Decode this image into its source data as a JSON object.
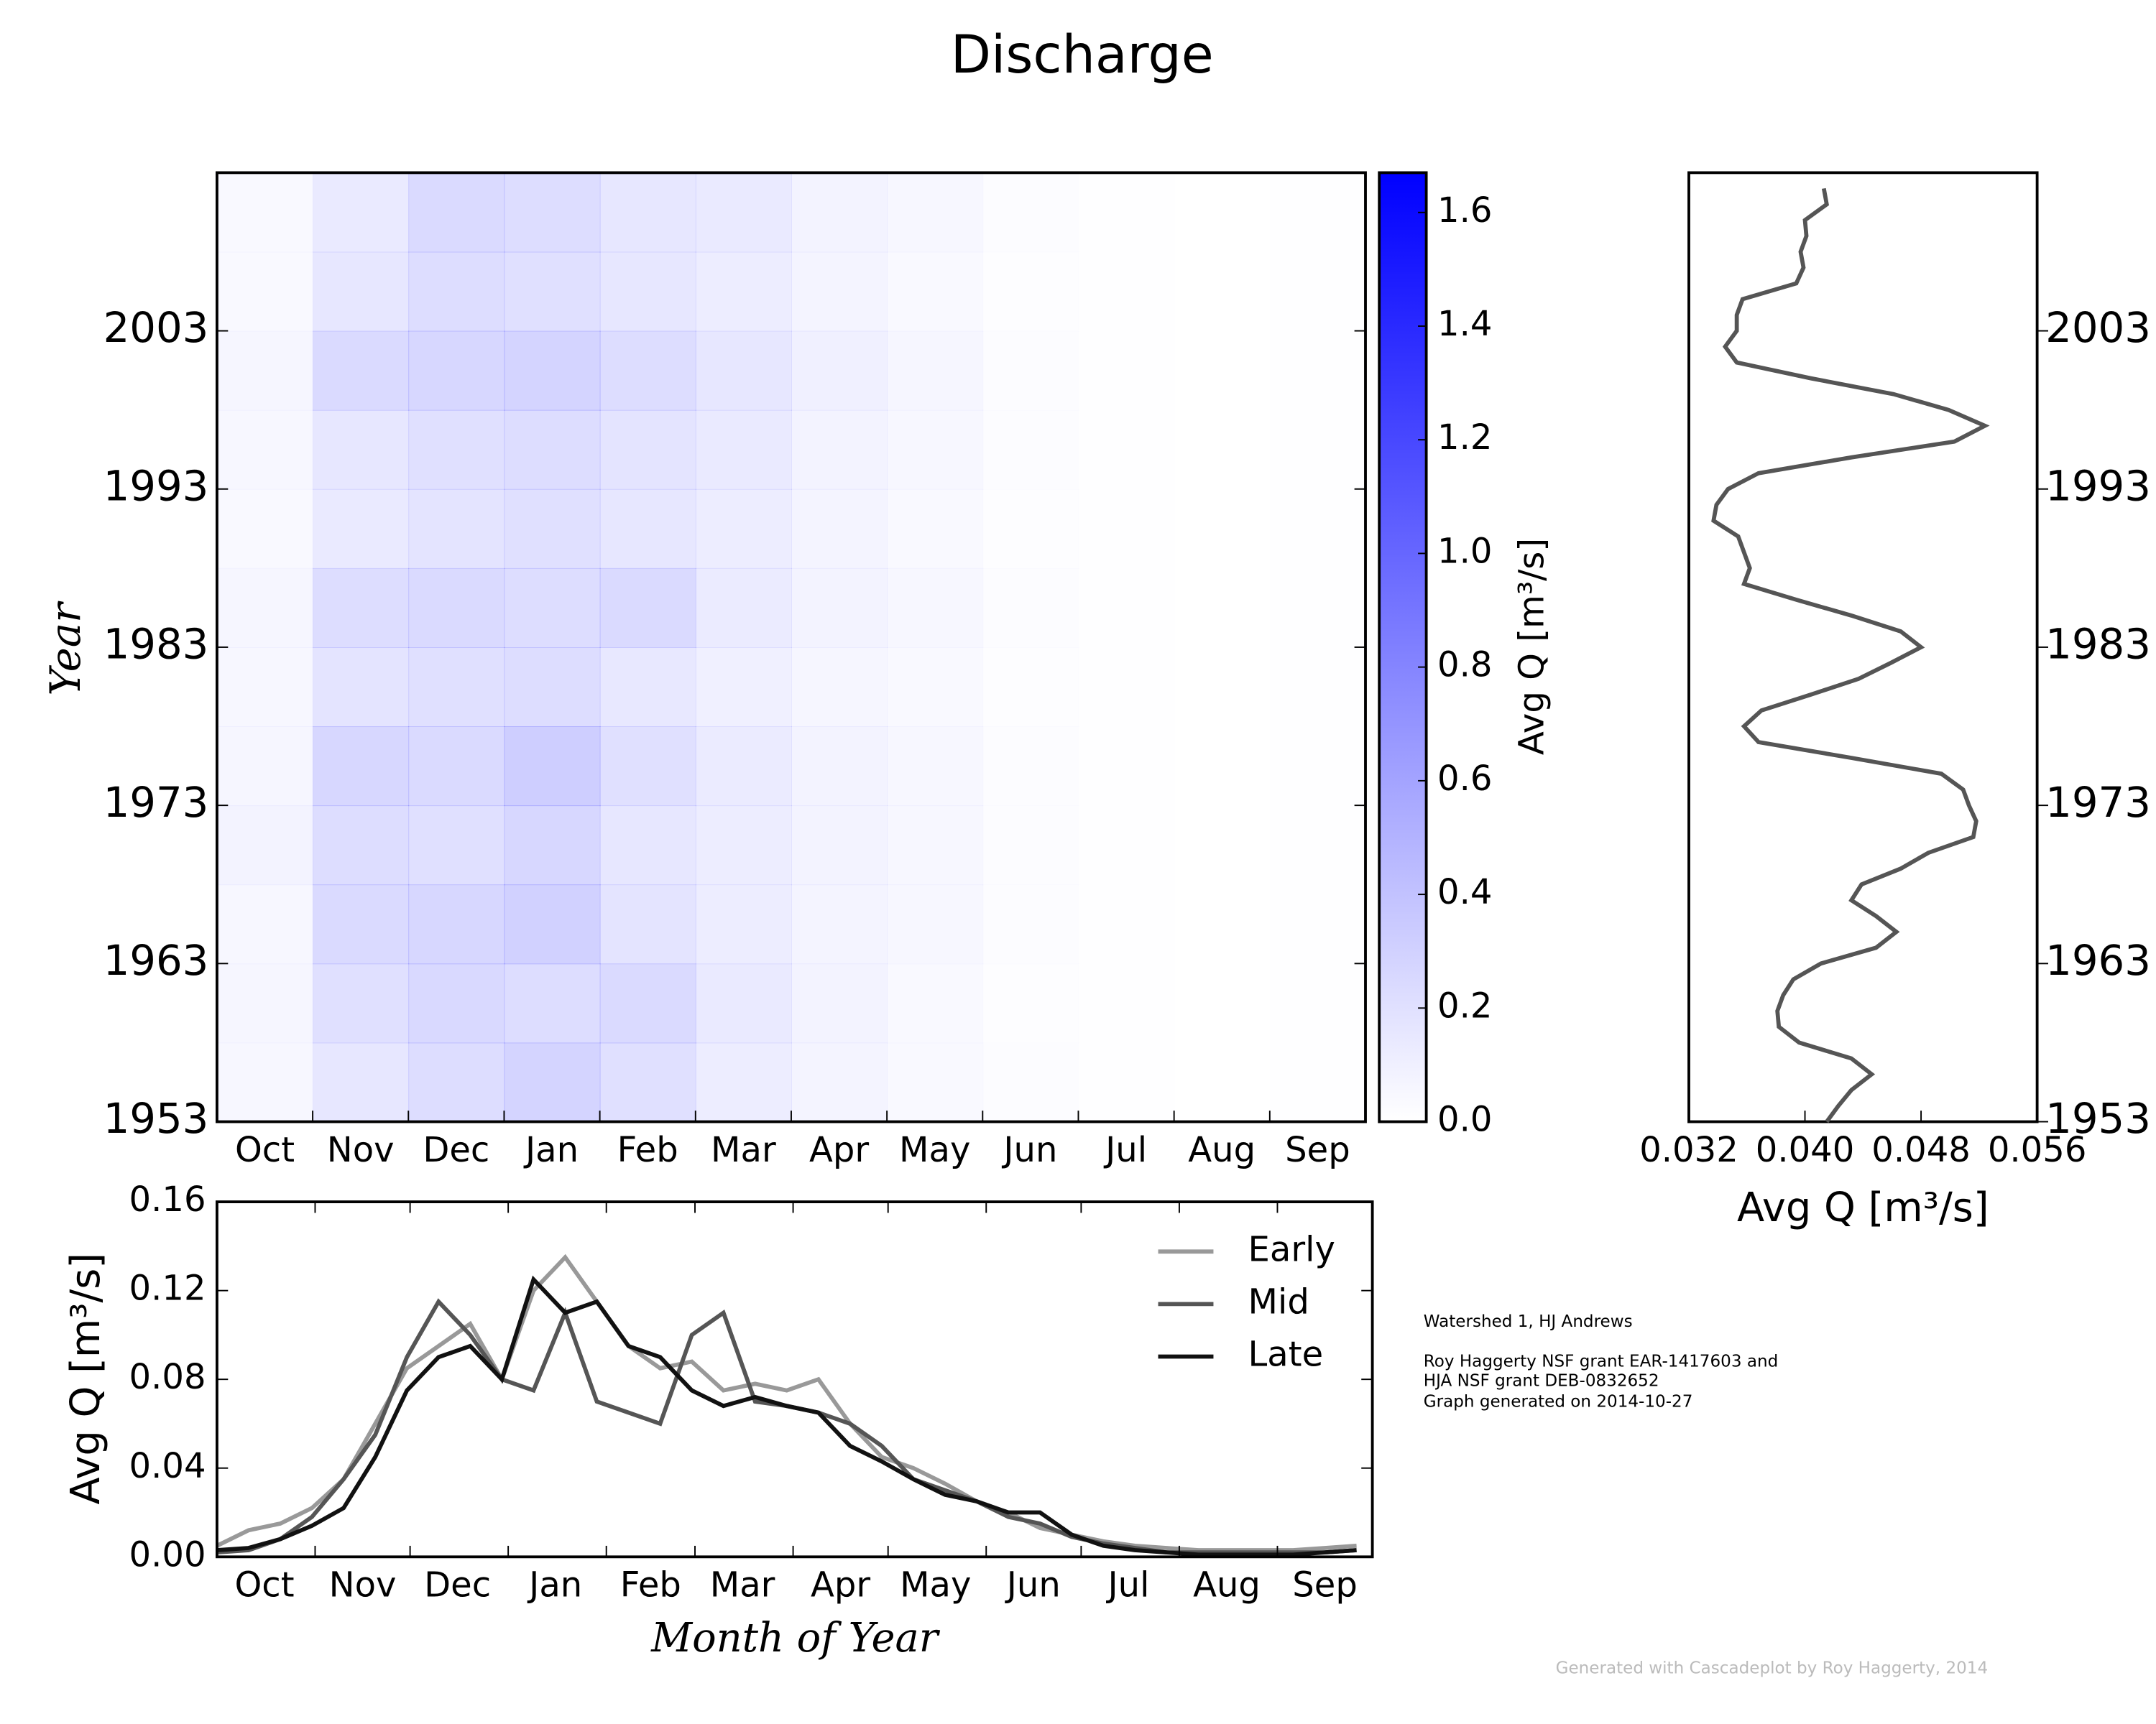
{
  "title": "Discharge",
  "notes": [
    "Watershed 1, HJ Andrews",
    "Roy Haggerty NSF grant EAR-1417603 and",
    "HJA NSF grant DEB-0832652",
    "Graph generated on 2014-10-27"
  ],
  "credit": "Generated with Cascadeplot by Roy Haggerty, 2014",
  "chart_data": [
    {
      "type": "heatmap",
      "ylabel": "Year",
      "color": "#0000ff",
      "categories": [
        "Oct",
        "Nov",
        "Dec",
        "Jan",
        "Feb",
        "Mar",
        "Apr",
        "May",
        "Jun",
        "Jul",
        "Aug",
        "Sep"
      ],
      "y": [
        1953,
        1958,
        1963,
        1968,
        1973,
        1978,
        1983,
        1988,
        1993,
        1998,
        2003,
        2008
      ],
      "ylim": [
        1953,
        2013
      ],
      "yticks": [
        1953,
        1963,
        1973,
        1983,
        1993,
        2003
      ],
      "values": [
        [
          0.05,
          0.16,
          0.22,
          0.28,
          0.2,
          0.12,
          0.07,
          0.04,
          0.02,
          0.005,
          0.002,
          0.005
        ],
        [
          0.06,
          0.2,
          0.25,
          0.22,
          0.24,
          0.14,
          0.08,
          0.04,
          0.015,
          0.004,
          0.002,
          0.006
        ],
        [
          0.05,
          0.24,
          0.26,
          0.3,
          0.18,
          0.12,
          0.07,
          0.05,
          0.02,
          0.005,
          0.002,
          0.004
        ],
        [
          0.08,
          0.22,
          0.2,
          0.26,
          0.16,
          0.12,
          0.08,
          0.05,
          0.02,
          0.005,
          0.002,
          0.005
        ],
        [
          0.06,
          0.26,
          0.24,
          0.32,
          0.2,
          0.13,
          0.08,
          0.05,
          0.02,
          0.006,
          0.002,
          0.005
        ],
        [
          0.05,
          0.18,
          0.2,
          0.22,
          0.15,
          0.1,
          0.06,
          0.04,
          0.015,
          0.004,
          0.002,
          0.004
        ],
        [
          0.06,
          0.22,
          0.24,
          0.22,
          0.24,
          0.13,
          0.08,
          0.05,
          0.02,
          0.005,
          0.002,
          0.008
        ],
        [
          0.04,
          0.14,
          0.18,
          0.2,
          0.16,
          0.12,
          0.07,
          0.04,
          0.015,
          0.004,
          0.002,
          0.004
        ],
        [
          0.05,
          0.16,
          0.2,
          0.22,
          0.18,
          0.14,
          0.08,
          0.05,
          0.02,
          0.005,
          0.002,
          0.004
        ],
        [
          0.06,
          0.24,
          0.26,
          0.28,
          0.22,
          0.16,
          0.1,
          0.06,
          0.02,
          0.005,
          0.002,
          0.005
        ],
        [
          0.04,
          0.16,
          0.22,
          0.2,
          0.16,
          0.12,
          0.07,
          0.04,
          0.015,
          0.004,
          0.002,
          0.004
        ],
        [
          0.04,
          0.14,
          0.24,
          0.22,
          0.16,
          0.14,
          0.08,
          0.05,
          0.02,
          0.004,
          0.002,
          0.004
        ]
      ],
      "colorbar_label": "Avg Q [m³/s]",
      "clim": [
        0,
        1.67
      ],
      "cticks": [
        {
          "value": 0,
          "label": "0.0"
        },
        {
          "value": 0.2,
          "label": "0.2"
        },
        {
          "value": 0.4,
          "label": "0.4"
        },
        {
          "value": 0.6,
          "label": "0.6"
        },
        {
          "value": 0.8,
          "label": "0.8"
        },
        {
          "value": 1,
          "label": "1.0"
        },
        {
          "value": 1.2,
          "label": "1.2"
        },
        {
          "value": 1.4,
          "label": "1.4"
        },
        {
          "value": 1.6,
          "label": "1.6"
        }
      ]
    },
    {
      "type": "profile",
      "xlabel": "Avg Q [m³/s]",
      "color": "#555555",
      "xlim": [
        0.032,
        0.056
      ],
      "xticks": [
        0.032,
        {
          "value": 0.04,
          "label": "0.040"
        },
        0.048,
        0.056
      ],
      "ylim": [
        1953,
        2013
      ],
      "yticks": [
        1953,
        1963,
        1973,
        1983,
        1993,
        2003
      ],
      "years": [
        1953,
        1954,
        1955,
        1956,
        1957,
        1958,
        1959,
        1960,
        1961,
        1962,
        1963,
        1964,
        1965,
        1966,
        1967,
        1968,
        1969,
        1970,
        1971,
        1972,
        1973,
        1974,
        1975,
        1976,
        1977,
        1978,
        1979,
        1980,
        1981,
        1982,
        1983,
        1984,
        1985,
        1986,
        1987,
        1988,
        1989,
        1990,
        1991,
        1992,
        1993,
        1994,
        1995,
        1996,
        1997,
        1998,
        1999,
        2000,
        2001,
        2002,
        2003,
        2004,
        2005,
        2006,
        2007,
        2008,
        2009,
        2010,
        2011,
        2012
      ],
      "values": [
        0.0415,
        0.0423,
        0.0432,
        0.0446,
        0.0432,
        0.0396,
        0.0382,
        0.0381,
        0.0385,
        0.0392,
        0.0411,
        0.0449,
        0.0463,
        0.0449,
        0.0432,
        0.0439,
        0.0466,
        0.0485,
        0.0516,
        0.0518,
        0.0513,
        0.0509,
        0.0494,
        0.0432,
        0.0368,
        0.0358,
        0.037,
        0.0404,
        0.0437,
        0.0459,
        0.048,
        0.0466,
        0.0432,
        0.0394,
        0.0358,
        0.0362,
        0.0358,
        0.0354,
        0.0337,
        0.0339,
        0.0347,
        0.0368,
        0.0432,
        0.0503,
        0.0524,
        0.0499,
        0.0461,
        0.0404,
        0.0353,
        0.0345,
        0.0353,
        0.0353,
        0.0357,
        0.0394,
        0.0399,
        0.0397,
        0.0401,
        0.04,
        0.0415,
        0.0413
      ]
    },
    {
      "type": "line",
      "xlabel": "Month of Year",
      "ylabel": "Avg Q [m³/s]",
      "xlim": [
        0,
        365
      ],
      "xticks": [
        {
          "value": 15,
          "label": "Oct"
        },
        {
          "value": 46,
          "label": "Nov"
        },
        {
          "value": 76,
          "label": "Dec"
        },
        {
          "value": 107,
          "label": "Jan"
        },
        {
          "value": 137,
          "label": "Feb"
        },
        {
          "value": 166,
          "label": "Mar"
        },
        {
          "value": 197,
          "label": "Apr"
        },
        {
          "value": 227,
          "label": "May"
        },
        {
          "value": 258,
          "label": "Jun"
        },
        {
          "value": 288,
          "label": "Jul"
        },
        {
          "value": 319,
          "label": "Aug"
        },
        {
          "value": 350,
          "label": "Sep"
        }
      ],
      "minor_xticks": [
        0,
        31,
        61,
        92,
        123,
        151,
        182,
        212,
        243,
        273,
        304,
        335,
        365
      ],
      "ylim": [
        0,
        0.16
      ],
      "yticks": [
        {
          "value": 0,
          "label": "0.00"
        },
        {
          "value": 0.04,
          "label": "0.04"
        },
        {
          "value": 0.08,
          "label": "0.08"
        },
        {
          "value": 0.12,
          "label": "0.12"
        },
        {
          "value": 0.16,
          "label": "0.16"
        }
      ],
      "x": [
        0,
        10,
        20,
        30,
        40,
        50,
        60,
        70,
        80,
        90,
        100,
        110,
        120,
        130,
        140,
        150,
        160,
        170,
        180,
        190,
        200,
        210,
        220,
        230,
        240,
        250,
        260,
        270,
        280,
        290,
        300,
        310,
        320,
        330,
        340,
        350,
        360
      ],
      "legend": "upper right",
      "series": [
        {
          "name": "Early",
          "color": "#999999",
          "values": [
            0.005,
            0.012,
            0.015,
            0.022,
            0.035,
            0.06,
            0.085,
            0.095,
            0.105,
            0.08,
            0.12,
            0.135,
            0.115,
            0.095,
            0.085,
            0.088,
            0.075,
            0.078,
            0.075,
            0.08,
            0.06,
            0.045,
            0.04,
            0.033,
            0.025,
            0.02,
            0.013,
            0.01,
            0.007,
            0.005,
            0.004,
            0.003,
            0.003,
            0.003,
            0.003,
            0.004,
            0.005
          ]
        },
        {
          "name": "Mid",
          "color": "#555555",
          "values": [
            0.002,
            0.003,
            0.008,
            0.018,
            0.035,
            0.055,
            0.09,
            0.115,
            0.1,
            0.08,
            0.075,
            0.11,
            0.07,
            0.065,
            0.06,
            0.1,
            0.11,
            0.07,
            0.068,
            0.065,
            0.06,
            0.05,
            0.035,
            0.03,
            0.025,
            0.018,
            0.015,
            0.009,
            0.006,
            0.004,
            0.002,
            0.002,
            0.002,
            0.002,
            0.002,
            0.002,
            0.003
          ]
        },
        {
          "name": "Late",
          "color": "#111111",
          "values": [
            0.003,
            0.004,
            0.008,
            0.014,
            0.022,
            0.045,
            0.075,
            0.09,
            0.095,
            0.08,
            0.125,
            0.11,
            0.115,
            0.095,
            0.09,
            0.075,
            0.068,
            0.072,
            0.068,
            0.065,
            0.05,
            0.043,
            0.035,
            0.028,
            0.025,
            0.02,
            0.02,
            0.01,
            0.005,
            0.003,
            0.002,
            0.001,
            0.001,
            0.001,
            0.001,
            0.002,
            0.003
          ]
        }
      ]
    }
  ]
}
